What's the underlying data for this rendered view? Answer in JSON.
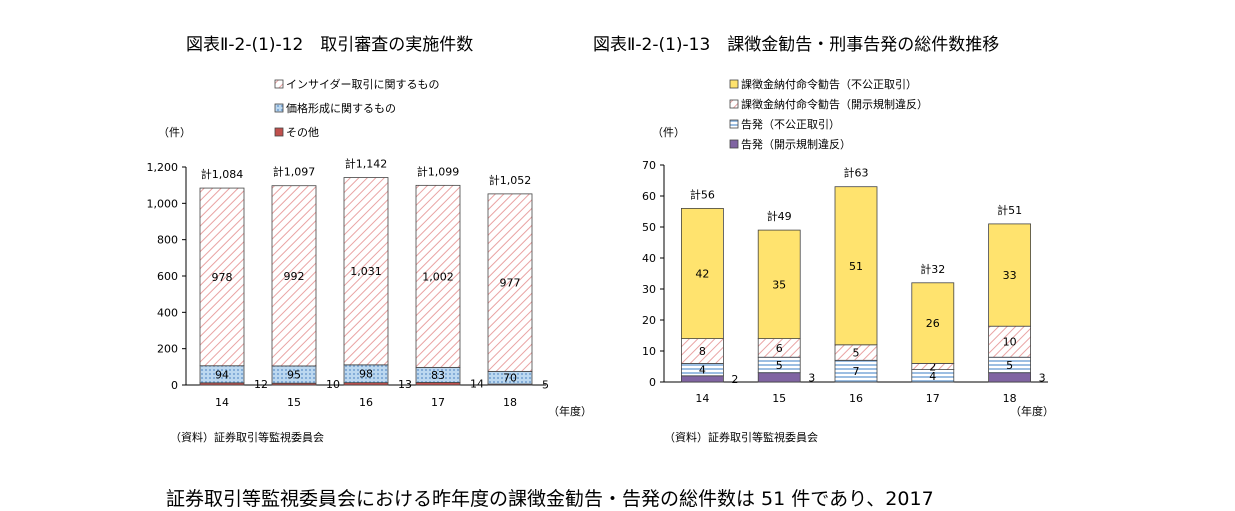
{
  "titles": {
    "left": "図表Ⅱ-2-(1)-12　取引審査の実施件数",
    "right": "図表Ⅱ-2-(1)-13　課徴金勧告・刑事告発の総件数推移"
  },
  "footer_text": "証券取引等監視委員会における昨年度の課徴金勧告・告発の総件数は 51 件であり、2017",
  "chart_data": [
    {
      "type": "bar",
      "stacked": true,
      "categories": [
        "14",
        "15",
        "16",
        "17",
        "18"
      ],
      "unit_label": "（件）",
      "xlabel": "（年度）",
      "ylim": [
        0,
        1200
      ],
      "yticks": [
        "0",
        "200",
        "400",
        "600",
        "800",
        "1,000",
        "1,200"
      ],
      "series": [
        {
          "name": "その他",
          "values": [
            12,
            10,
            13,
            14,
            5
          ],
          "color": "#c0504d",
          "pattern": "solid"
        },
        {
          "name": "価格形成に関するもの",
          "values": [
            94,
            95,
            98,
            83,
            70
          ],
          "color": "#9dc3e6",
          "pattern": "dots"
        },
        {
          "name": "インサイダー取引に関するもの",
          "values": [
            978,
            992,
            1031,
            1002,
            977
          ],
          "color": "#f4b8b8",
          "pattern": "diag"
        }
      ],
      "totals": [
        "計1,084",
        "計1,097",
        "計1,142",
        "計1,099",
        "計1,052"
      ],
      "value_labels": {
        "その他": [
          "12",
          "10",
          "13",
          "14",
          "5"
        ],
        "価格形成に関するもの": [
          "94",
          "95",
          "98",
          "83",
          "70"
        ],
        "インサイダー取引に関するもの": [
          "978",
          "992",
          "1,031",
          "1,002",
          "977"
        ]
      },
      "legend_order": [
        "インサイダー取引に関するもの",
        "価格形成に関するもの",
        "その他"
      ],
      "source": "（資料）証券取引等監視委員会"
    },
    {
      "type": "bar",
      "stacked": true,
      "categories": [
        "14",
        "15",
        "16",
        "17",
        "18"
      ],
      "unit_label": "（件）",
      "xlabel": "（年度）",
      "ylim": [
        0,
        70
      ],
      "yticks": [
        "0",
        "10",
        "20",
        "30",
        "40",
        "50",
        "60",
        "70"
      ],
      "series": [
        {
          "name": "告発（開示規制違反）",
          "values": [
            2,
            3,
            0,
            0,
            3
          ],
          "color": "#8064a2",
          "pattern": "solid"
        },
        {
          "name": "告発（不公正取引）",
          "values": [
            4,
            5,
            7,
            4,
            5
          ],
          "color": "#9dc3e6",
          "pattern": "hlines"
        },
        {
          "name": "課徴金納付命令勧告（開示規制違反）",
          "values": [
            8,
            6,
            5,
            2,
            10
          ],
          "color": "#f4b8b8",
          "pattern": "diag"
        },
        {
          "name": "課徴金納付命令勧告（不公正取引）",
          "values": [
            42,
            35,
            51,
            26,
            33
          ],
          "color": "#ffe36e",
          "pattern": "solid"
        }
      ],
      "totals": [
        "計56",
        "計49",
        "計63",
        "計32",
        "計51"
      ],
      "value_labels": {
        "告発（開示規制違反）": [
          "2",
          "3",
          "",
          "",
          "3"
        ],
        "告発（不公正取引）": [
          "4",
          "5",
          "7",
          "4",
          "5"
        ],
        "課徴金納付命令勧告（開示規制違反）": [
          "8",
          "6",
          "5",
          "2",
          "10"
        ],
        "課徴金納付命令勧告（不公正取引）": [
          "42",
          "35",
          "51",
          "26",
          "33"
        ]
      },
      "legend_order": [
        "課徴金納付命令勧告（不公正取引）",
        "課徴金納付命令勧告（開示規制違反）",
        "告発（不公正取引）",
        "告発（開示規制違反）"
      ],
      "source": "（資料）証券取引等監視委員会"
    }
  ]
}
